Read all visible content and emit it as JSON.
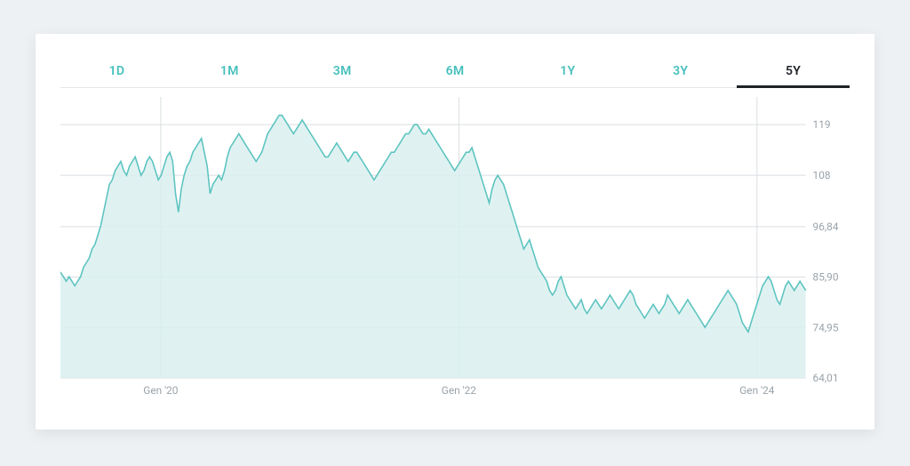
{
  "tabs": {
    "items": [
      {
        "label": "1D",
        "active": false
      },
      {
        "label": "1M",
        "active": false
      },
      {
        "label": "3M",
        "active": false
      },
      {
        "label": "6M",
        "active": false
      },
      {
        "label": "1Y",
        "active": false
      },
      {
        "label": "3Y",
        "active": false
      },
      {
        "label": "5Y",
        "active": true
      }
    ],
    "inactive_color": "#47c0bc",
    "active_color": "#1f2328",
    "fontsize": 14
  },
  "chart": {
    "type": "area",
    "line_color": "#5dc4c0",
    "fill_color": "#d9f0ee",
    "grid_color": "#d9dde1",
    "background_color": "#ffffff",
    "line_width": 1.6,
    "y": {
      "min": 64.01,
      "max": 125,
      "ticks": [
        {
          "value": 119,
          "label": "119"
        },
        {
          "value": 108,
          "label": "108"
        },
        {
          "value": 96.84,
          "label": "96,84"
        },
        {
          "value": 85.9,
          "label": "85,90"
        },
        {
          "value": 74.95,
          "label": "74,95"
        },
        {
          "value": 64.01,
          "label": "64,01"
        }
      ],
      "label_color": "#9aa3aa",
      "label_fontsize": 12
    },
    "x": {
      "min": 0,
      "max": 260,
      "ticks": [
        {
          "pos": 35,
          "label": "Gen '20"
        },
        {
          "pos": 139,
          "label": "Gen '22"
        },
        {
          "pos": 243,
          "label": "Gen '24"
        }
      ],
      "label_color": "#9aa3aa",
      "label_fontsize": 12
    },
    "series": [
      87,
      86,
      85,
      86,
      85,
      84,
      85,
      86,
      88,
      89,
      90,
      92,
      93,
      95,
      97,
      100,
      103,
      106,
      107,
      109,
      110,
      111,
      109,
      108,
      110,
      111,
      112,
      110,
      108,
      109,
      111,
      112,
      111,
      109,
      107,
      108,
      110,
      112,
      113,
      111,
      104,
      100,
      105,
      108,
      110,
      111,
      113,
      114,
      115,
      116,
      113,
      110,
      104,
      106,
      107,
      108,
      107,
      109,
      112,
      114,
      115,
      116,
      117,
      116,
      115,
      114,
      113,
      112,
      111,
      112,
      113,
      115,
      117,
      118,
      119,
      120,
      121,
      121,
      120,
      119,
      118,
      117,
      118,
      119,
      120,
      119,
      118,
      117,
      116,
      115,
      114,
      113,
      112,
      112,
      113,
      114,
      115,
      114,
      113,
      112,
      111,
      112,
      113,
      113,
      112,
      111,
      110,
      109,
      108,
      107,
      108,
      109,
      110,
      111,
      112,
      113,
      113,
      114,
      115,
      116,
      117,
      117,
      118,
      119,
      119,
      118,
      117,
      117,
      118,
      117,
      116,
      115,
      114,
      113,
      112,
      111,
      110,
      109,
      110,
      111,
      112,
      113,
      113,
      114,
      112,
      110,
      108,
      106,
      104,
      102,
      105,
      107,
      108,
      107,
      106,
      104,
      102,
      100,
      98,
      96,
      94,
      92,
      93,
      94,
      92,
      90,
      88,
      87,
      86,
      85,
      83,
      82,
      83,
      85,
      86,
      84,
      82,
      81,
      80,
      79,
      80,
      81,
      79,
      78,
      79,
      80,
      81,
      80,
      79,
      80,
      81,
      82,
      81,
      80,
      79,
      80,
      81,
      82,
      83,
      82,
      80,
      79,
      78,
      77,
      78,
      79,
      80,
      79,
      78,
      79,
      80,
      82,
      81,
      80,
      79,
      78,
      79,
      80,
      81,
      80,
      79,
      78,
      77,
      76,
      75,
      76,
      77,
      78,
      79,
      80,
      81,
      82,
      83,
      82,
      81,
      80,
      78,
      76,
      75,
      74,
      76,
      78,
      80,
      82,
      84,
      85,
      86,
      85,
      83,
      81,
      80,
      82,
      84,
      85,
      84,
      83,
      84,
      85,
      84,
      83
    ]
  }
}
